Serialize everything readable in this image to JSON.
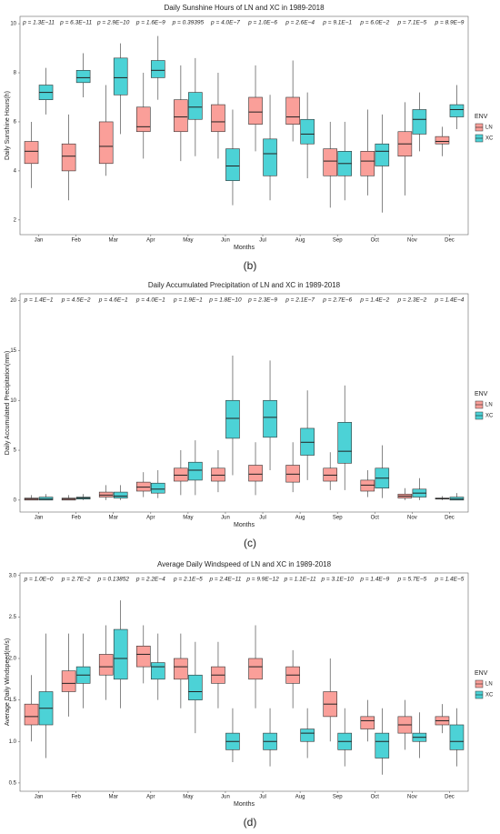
{
  "chart_data": [
    {
      "type": "box",
      "title": "Daily Sunshine Hours of LN and XC in 1989-2018",
      "xlabel": "Months",
      "ylabel": "Daily Sunshine Hours(h)",
      "panel_label": "(b)",
      "categories": [
        "Jan",
        "Feb",
        "Mar",
        "Apr",
        "May",
        "Jun",
        "Jul",
        "Aug",
        "Sep",
        "Oct",
        "Nov",
        "Dec"
      ],
      "annotations": [
        "p = 1.3E−11",
        "p = 6.3E−11",
        "p = 2.9E−10",
        "p = 1.6E−9",
        "p = 0.39395",
        "p = 4.0E−7",
        "p = 1.0E−6",
        "p = 2.6E−4",
        "p = 9.1E−1",
        "p = 6.0E−2",
        "p = 7.1E−5",
        "p = 8.9E−9"
      ],
      "legend_title": "ENV",
      "series": [
        {
          "name": "LN",
          "color": "#F8766D",
          "boxes": [
            [
              3.3,
              4.3,
              4.8,
              5.2,
              6.0
            ],
            [
              2.8,
              4.0,
              4.6,
              5.1,
              6.3
            ],
            [
              3.8,
              4.3,
              5.0,
              6.0,
              7.5
            ],
            [
              4.5,
              5.6,
              5.8,
              6.6,
              8.0
            ],
            [
              4.4,
              5.6,
              6.2,
              6.9,
              8.3
            ],
            [
              4.5,
              5.6,
              6.0,
              6.7,
              8.0
            ],
            [
              4.8,
              5.9,
              6.4,
              7.0,
              8.3
            ],
            [
              5.2,
              5.9,
              6.2,
              7.0,
              8.5
            ],
            [
              2.5,
              3.8,
              4.4,
              4.9,
              6.0
            ],
            [
              3.0,
              3.8,
              4.4,
              4.8,
              6.5
            ],
            [
              3.0,
              4.6,
              5.1,
              5.6,
              6.8
            ],
            [
              4.6,
              5.1,
              5.2,
              5.4,
              5.8
            ]
          ]
        },
        {
          "name": "XC",
          "color": "#00BFC4",
          "boxes": [
            [
              6.3,
              6.9,
              7.2,
              7.5,
              8.2
            ],
            [
              7.0,
              7.6,
              7.8,
              8.1,
              8.8
            ],
            [
              5.5,
              7.1,
              7.8,
              8.6,
              9.2
            ],
            [
              6.9,
              7.8,
              8.1,
              8.5,
              9.5
            ],
            [
              4.6,
              6.1,
              6.6,
              7.2,
              8.6
            ],
            [
              2.6,
              3.6,
              4.2,
              4.9,
              6.5
            ],
            [
              2.8,
              3.8,
              4.7,
              5.3,
              7.1
            ],
            [
              3.7,
              5.1,
              5.5,
              6.1,
              7.2
            ],
            [
              2.8,
              3.8,
              4.3,
              4.8,
              6.0
            ],
            [
              2.3,
              4.2,
              4.8,
              5.1,
              6.3
            ],
            [
              4.8,
              5.5,
              6.1,
              6.5,
              7.2
            ],
            [
              5.7,
              6.2,
              6.5,
              6.7,
              7.5
            ]
          ]
        }
      ],
      "ylim": [
        1.4,
        10.3
      ],
      "yticks": [
        2,
        4,
        6,
        8,
        10
      ]
    },
    {
      "type": "box",
      "title": "Daily Accumulated Precipitation of LN and XC in 1989-2018",
      "xlabel": "Months",
      "ylabel": "Daily Accumulated Precipitation(mm)",
      "panel_label": "(c)",
      "categories": [
        "Jan",
        "Feb",
        "Mar",
        "Apr",
        "May",
        "Jun",
        "Jul",
        "Aug",
        "Sep",
        "Oct",
        "Nov",
        "Dec"
      ],
      "annotations": [
        "p = 1.4E−1",
        "p = 4.5E−2",
        "p = 4.6E−1",
        "p = 4.0E−1",
        "p = 1.9E−1",
        "p = 1.8E−10",
        "p = 2.3E−9",
        "p = 2.1E−7",
        "p = 2.7E−6",
        "p = 1.4E−2",
        "p = 2.3E−2",
        "p = 1.4E−4"
      ],
      "legend_title": "ENV",
      "series": [
        {
          "name": "LN",
          "color": "#F8766D",
          "boxes": [
            [
              0,
              0,
              0.1,
              0.2,
              0.5
            ],
            [
              0,
              0,
              0.1,
              0.2,
              0.5
            ],
            [
              0,
              0.3,
              0.5,
              0.8,
              1.5
            ],
            [
              0.3,
              0.9,
              1.3,
              1.8,
              2.8
            ],
            [
              0.5,
              1.9,
              2.5,
              3.2,
              5
            ],
            [
              0.8,
              1.9,
              2.5,
              3.2,
              5
            ],
            [
              0.5,
              1.9,
              2.6,
              3.5,
              5.8
            ],
            [
              0.8,
              1.8,
              2.6,
              3.5,
              5.8
            ],
            [
              1,
              1.9,
              2.5,
              3.2,
              4.8
            ],
            [
              0.3,
              0.9,
              1.5,
              2.0,
              3
            ],
            [
              0,
              0.2,
              0.4,
              0.6,
              1.2
            ],
            [
              0,
              0.1,
              0.15,
              0.2,
              0.4
            ]
          ]
        },
        {
          "name": "XC",
          "color": "#00BFC4",
          "boxes": [
            [
              0,
              0,
              0.1,
              0.3,
              0.6
            ],
            [
              0,
              0.1,
              0.2,
              0.3,
              0.6
            ],
            [
              0,
              0.2,
              0.4,
              0.8,
              1.5
            ],
            [
              0.2,
              0.7,
              1.1,
              1.7,
              3
            ],
            [
              0.5,
              2.0,
              3.0,
              3.8,
              6
            ],
            [
              2.5,
              6.2,
              8.2,
              10,
              14.5
            ],
            [
              3,
              6.3,
              8.3,
              10,
              14
            ],
            [
              2,
              4.5,
              5.8,
              7.2,
              11
            ],
            [
              1,
              3.7,
              4.9,
              7.8,
              11.5
            ],
            [
              0.2,
              1.2,
              2.2,
              3.2,
              5.5
            ],
            [
              0,
              0.3,
              0.7,
              1.1,
              2.2
            ],
            [
              0,
              0,
              0.1,
              0.3,
              0.7
            ]
          ]
        }
      ],
      "ylim": [
        -1.2,
        20.7
      ],
      "yticks": [
        0,
        5,
        10,
        15,
        20
      ]
    },
    {
      "type": "box",
      "title": "Average Daily Windspeed of LN and XC in 1989-2018",
      "xlabel": "Months",
      "ylabel": "Average Daily Windspeed(m/s)",
      "panel_label": "(d)",
      "categories": [
        "Jan",
        "Feb",
        "Mar",
        "Apr",
        "May",
        "Jun",
        "Jul",
        "Aug",
        "Sep",
        "Oct",
        "Nov",
        "Dec"
      ],
      "annotations": [
        "p = 1.0E−0",
        "p = 2.7E−2",
        "p = 0.13852",
        "p = 2.2E−4",
        "p = 2.1E−5",
        "p = 2.4E−11",
        "p = 9.9E−12",
        "p = 1.1E−11",
        "p = 3.1E−10",
        "p = 1.4E−9",
        "p = 5.7E−5",
        "p = 1.4E−5"
      ],
      "legend_title": "ENV",
      "series": [
        {
          "name": "LN",
          "color": "#F8766D",
          "boxes": [
            [
              1.0,
              1.2,
              1.3,
              1.45,
              1.8
            ],
            [
              1.3,
              1.6,
              1.7,
              1.85,
              2.3
            ],
            [
              1.5,
              1.8,
              1.9,
              2.05,
              2.4
            ],
            [
              1.7,
              1.9,
              2.05,
              2.15,
              2.4
            ],
            [
              1.4,
              1.75,
              1.9,
              2.0,
              2.3
            ],
            [
              1.4,
              1.7,
              1.8,
              1.9,
              2.2
            ],
            [
              1.4,
              1.75,
              1.9,
              2.0,
              2.4
            ],
            [
              1.4,
              1.7,
              1.8,
              1.9,
              2.1
            ],
            [
              1.0,
              1.3,
              1.45,
              1.6,
              2.0
            ],
            [
              1.0,
              1.15,
              1.25,
              1.3,
              1.5
            ],
            [
              0.9,
              1.1,
              1.2,
              1.3,
              1.5
            ],
            [
              1.1,
              1.2,
              1.25,
              1.3,
              1.45
            ]
          ]
        },
        {
          "name": "XC",
          "color": "#00BFC4",
          "boxes": [
            [
              0.8,
              1.2,
              1.4,
              1.6,
              2.3
            ],
            [
              1.4,
              1.7,
              1.8,
              1.9,
              2.3
            ],
            [
              1.4,
              1.75,
              2.0,
              2.35,
              2.7
            ],
            [
              1.5,
              1.75,
              1.9,
              1.95,
              2.3
            ],
            [
              1.1,
              1.5,
              1.6,
              1.8,
              2.2
            ],
            [
              0.75,
              0.9,
              1.0,
              1.1,
              1.4
            ],
            [
              0.7,
              0.9,
              1.0,
              1.1,
              1.4
            ],
            [
              0.8,
              1.0,
              1.1,
              1.15,
              1.4
            ],
            [
              0.7,
              0.9,
              1.0,
              1.1,
              1.4
            ],
            [
              0.6,
              0.8,
              1.0,
              1.1,
              1.4
            ],
            [
              0.8,
              1.0,
              1.05,
              1.1,
              1.35
            ],
            [
              0.7,
              0.9,
              1.0,
              1.2,
              1.4
            ]
          ]
        }
      ],
      "ylim": [
        0.4,
        3.03
      ],
      "yticks": [
        0.5,
        {
          "value": 1,
          "label": "1.0"
        },
        1.5,
        {
          "value": 2,
          "label": "2.0"
        },
        2.5,
        {
          "value": 3,
          "label": "3.0"
        }
      ]
    }
  ]
}
